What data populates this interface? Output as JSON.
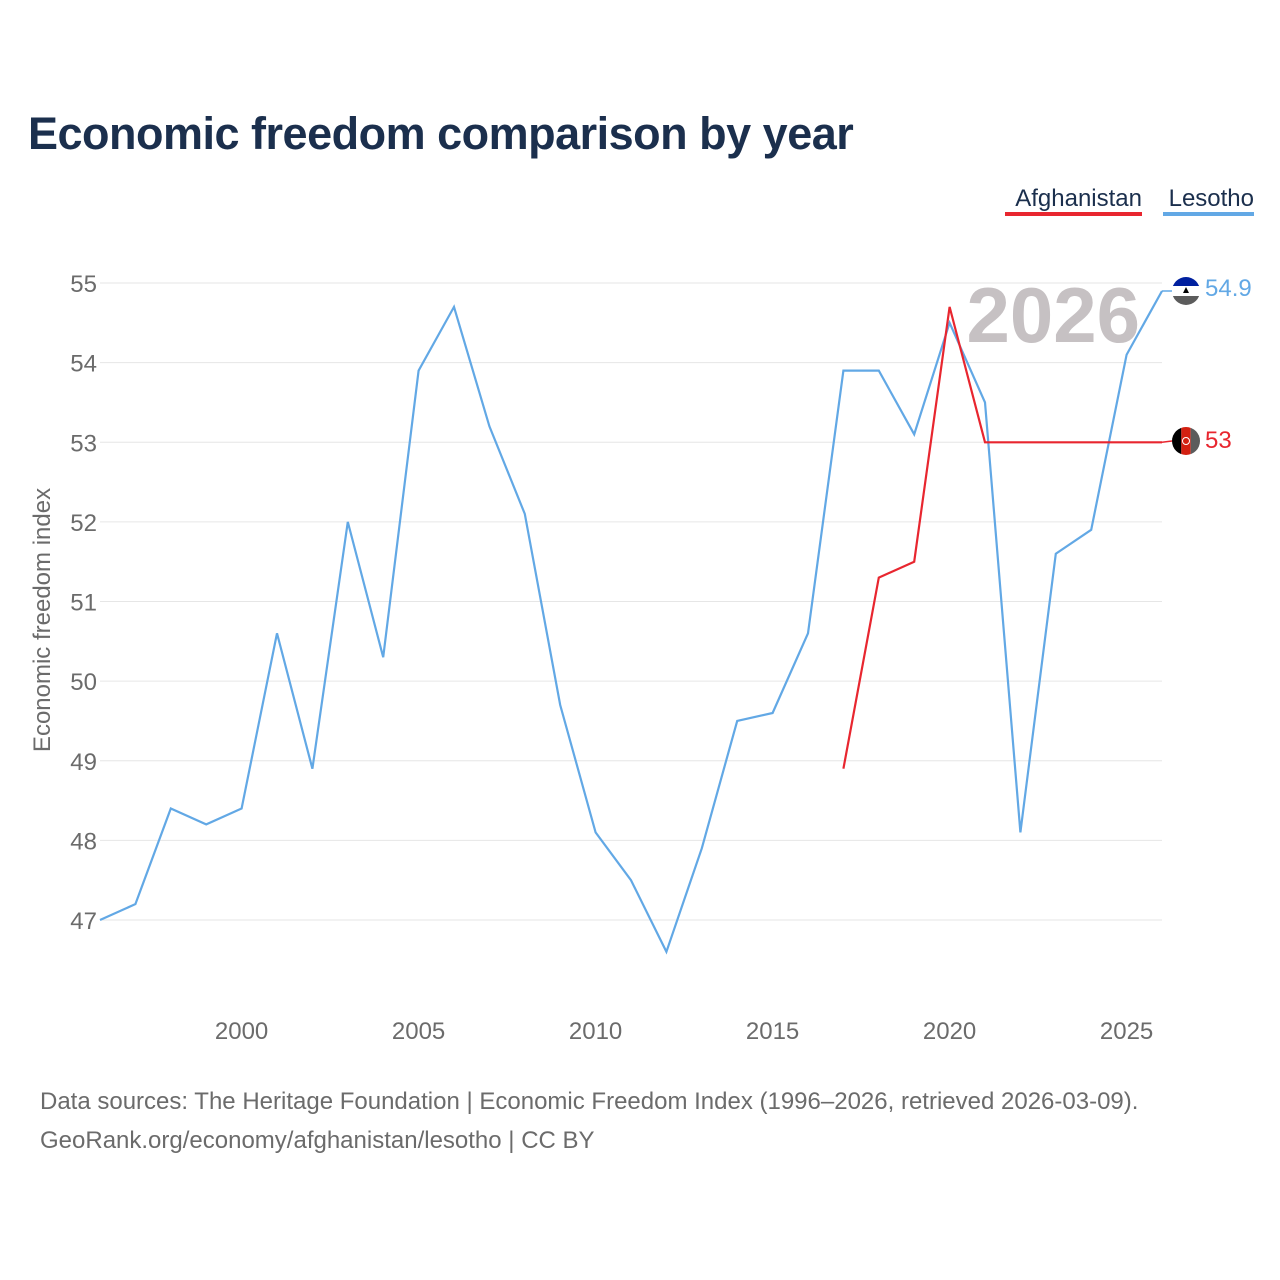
{
  "chart_data": {
    "type": "line",
    "title": "Economic freedom comparison by year",
    "xlabel": "",
    "ylabel": "Economic freedom index",
    "xlim": [
      1996,
      2026
    ],
    "ylim": [
      46,
      55
    ],
    "x_ticks": [
      2000,
      2005,
      2010,
      2015,
      2020,
      2025
    ],
    "y_ticks": [
      47,
      48,
      49,
      50,
      51,
      52,
      53,
      54,
      55
    ],
    "grid": true,
    "legend_position": "top-right",
    "year_watermark": "2026",
    "series": [
      {
        "name": "Afghanistan",
        "color": "#e8262f",
        "x": [
          2017,
          2018,
          2019,
          2020,
          2021,
          2022,
          2023,
          2024,
          2025,
          2026
        ],
        "values": [
          48.9,
          51.3,
          51.5,
          54.7,
          53.0,
          53.0,
          53.0,
          53.0,
          53.0,
          53.0
        ],
        "end_label": "53"
      },
      {
        "name": "Lesotho",
        "color": "#62a8e5",
        "x": [
          1996,
          1997,
          1998,
          1999,
          2000,
          2001,
          2002,
          2003,
          2004,
          2005,
          2006,
          2007,
          2008,
          2009,
          2010,
          2011,
          2012,
          2013,
          2014,
          2015,
          2016,
          2017,
          2018,
          2019,
          2020,
          2021,
          2022,
          2023,
          2024,
          2025,
          2026
        ],
        "values": [
          47.0,
          47.2,
          48.4,
          48.2,
          48.4,
          50.6,
          48.9,
          52.0,
          50.3,
          53.9,
          54.7,
          53.2,
          52.1,
          49.7,
          48.1,
          47.5,
          46.6,
          47.9,
          49.5,
          49.6,
          50.6,
          53.9,
          53.9,
          53.1,
          54.5,
          53.5,
          48.1,
          51.6,
          51.9,
          54.1,
          54.9
        ],
        "end_label": "54.9"
      }
    ]
  },
  "footer": {
    "sources": "Data sources: The Heritage Foundation | Economic Freedom Index (1996–2026, retrieved 2026-03-09).",
    "credit": "GeoRank.org/economy/afghanistan/lesotho | CC BY"
  }
}
